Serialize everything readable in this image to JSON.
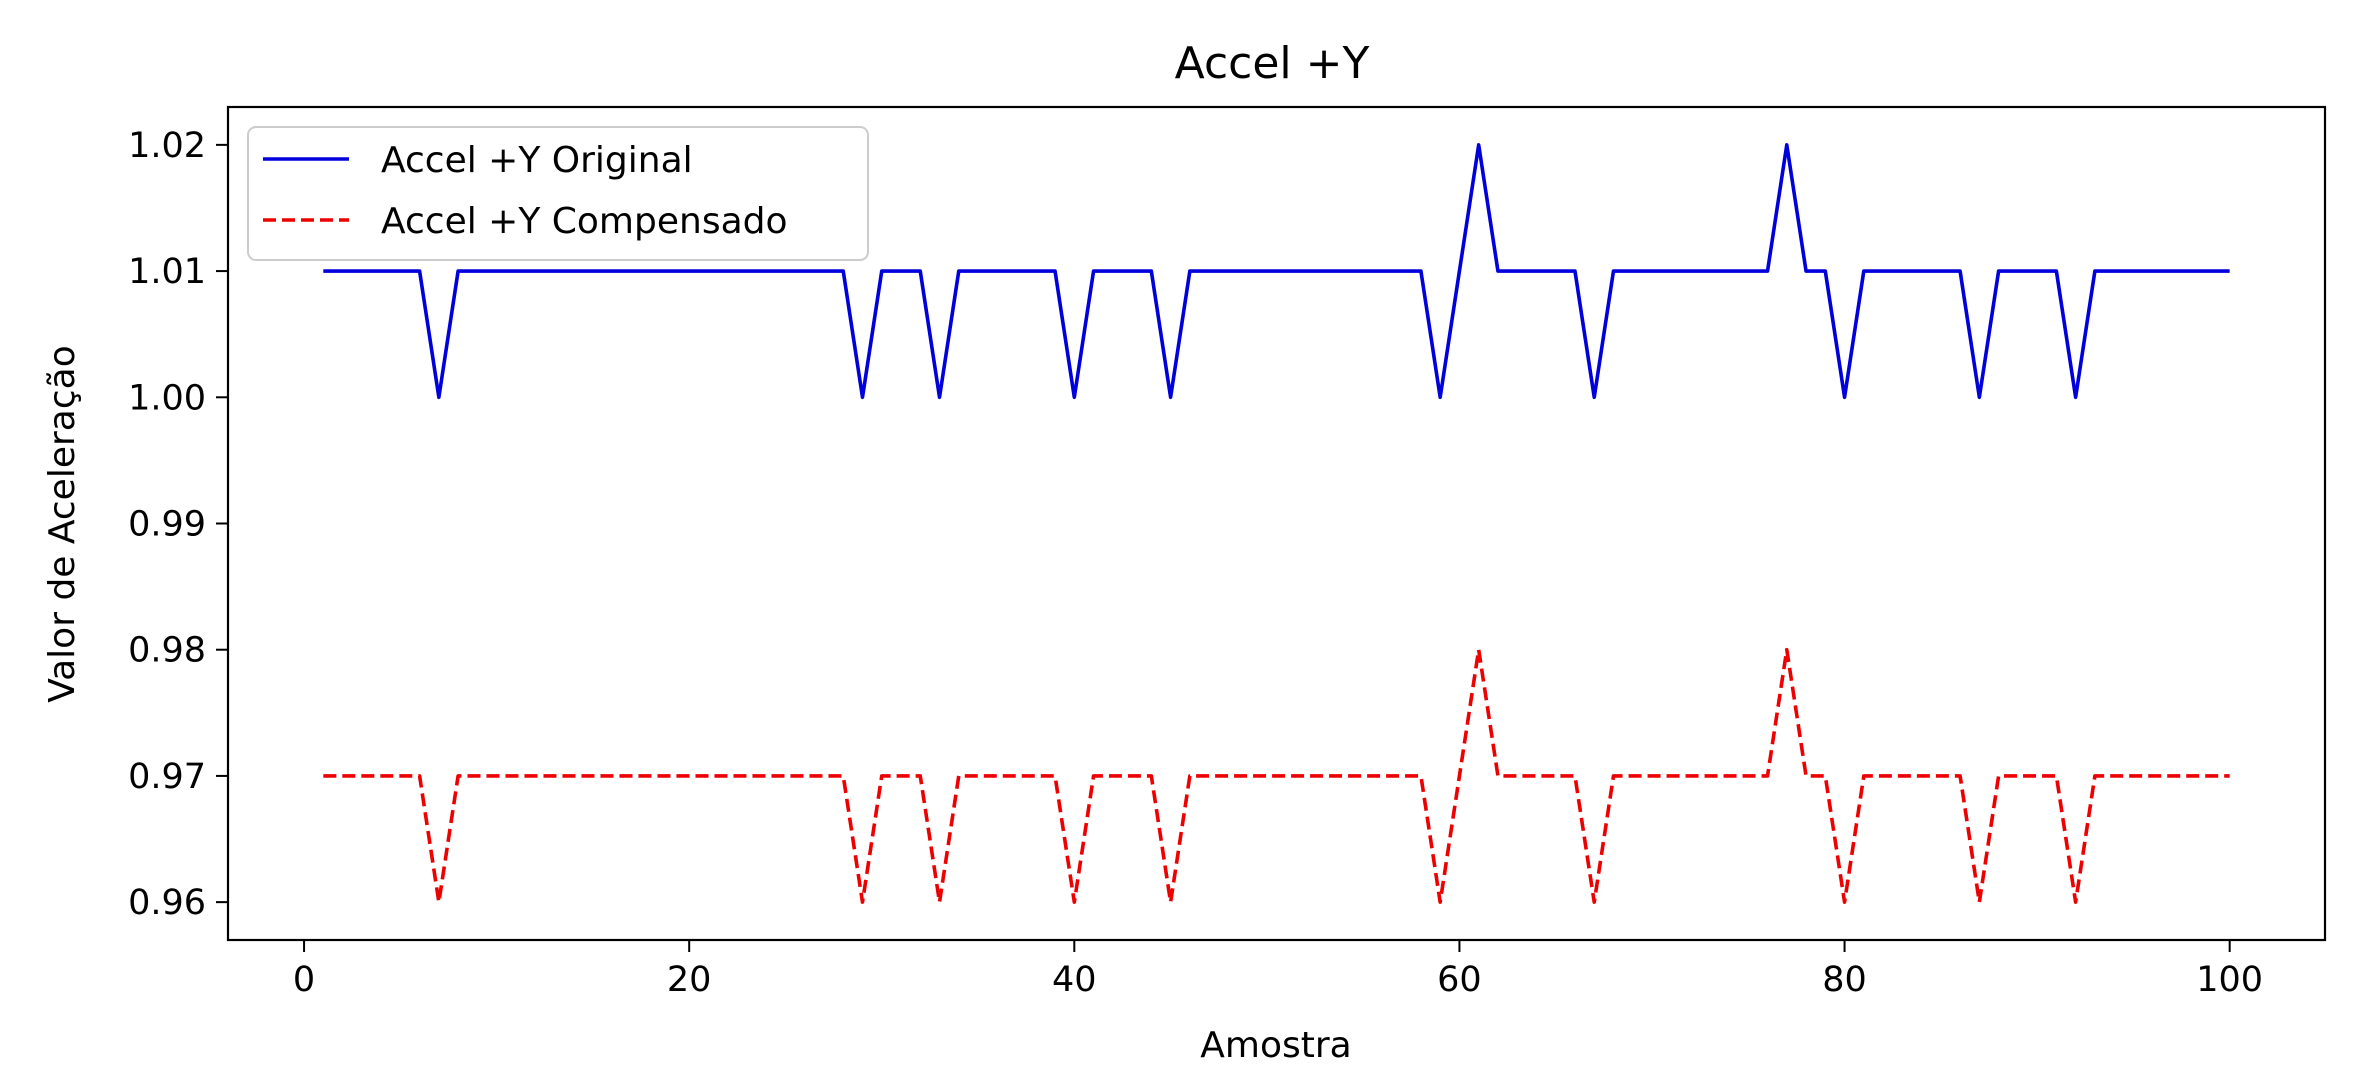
{
  "chart_data": {
    "type": "line",
    "title": "Accel +Y",
    "xlabel": "Amostra",
    "ylabel": "Valor de Aceleração",
    "xlim": [
      -3.95,
      104.95
    ],
    "ylim": [
      0.957,
      1.023
    ],
    "xticks": [
      0,
      20,
      40,
      60,
      80,
      100
    ],
    "xtick_labels": [
      "0",
      "20",
      "40",
      "60",
      "80",
      "100"
    ],
    "yticks": [
      0.96,
      0.97,
      0.98,
      0.99,
      1.0,
      1.01,
      1.02
    ],
    "ytick_labels": [
      "0.96",
      "0.97",
      "0.98",
      "0.99",
      "1.00",
      "1.01",
      "1.02"
    ],
    "grid": false,
    "legend_position": "upper left",
    "x": [
      1,
      2,
      3,
      4,
      5,
      6,
      7,
      8,
      9,
      10,
      11,
      12,
      13,
      14,
      15,
      16,
      17,
      18,
      19,
      20,
      21,
      22,
      23,
      24,
      25,
      26,
      27,
      28,
      29,
      30,
      31,
      32,
      33,
      34,
      35,
      36,
      37,
      38,
      39,
      40,
      41,
      42,
      43,
      44,
      45,
      46,
      47,
      48,
      49,
      50,
      51,
      52,
      53,
      54,
      55,
      56,
      57,
      58,
      59,
      60,
      61,
      62,
      63,
      64,
      65,
      66,
      67,
      68,
      69,
      70,
      71,
      72,
      73,
      74,
      75,
      76,
      77,
      78,
      79,
      80,
      81,
      82,
      83,
      84,
      85,
      86,
      87,
      88,
      89,
      90,
      91,
      92,
      93,
      94,
      95,
      96,
      97,
      98,
      99,
      100
    ],
    "series": [
      {
        "name": "Accel +Y Original",
        "color": "#0000dd",
        "style": "solid",
        "values": [
          1.01,
          1.01,
          1.01,
          1.01,
          1.01,
          1.01,
          1.0,
          1.01,
          1.01,
          1.01,
          1.01,
          1.01,
          1.01,
          1.01,
          1.01,
          1.01,
          1.01,
          1.01,
          1.01,
          1.01,
          1.01,
          1.01,
          1.01,
          1.01,
          1.01,
          1.01,
          1.01,
          1.01,
          1.0,
          1.01,
          1.01,
          1.01,
          1.0,
          1.01,
          1.01,
          1.01,
          1.01,
          1.01,
          1.01,
          1.0,
          1.01,
          1.01,
          1.01,
          1.01,
          1.0,
          1.01,
          1.01,
          1.01,
          1.01,
          1.01,
          1.01,
          1.01,
          1.01,
          1.01,
          1.01,
          1.01,
          1.01,
          1.01,
          1.0,
          1.01,
          1.02,
          1.01,
          1.01,
          1.01,
          1.01,
          1.01,
          1.0,
          1.01,
          1.01,
          1.01,
          1.01,
          1.01,
          1.01,
          1.01,
          1.01,
          1.01,
          1.02,
          1.01,
          1.01,
          1.0,
          1.01,
          1.01,
          1.01,
          1.01,
          1.01,
          1.01,
          1.0,
          1.01,
          1.01,
          1.01,
          1.01,
          1.0,
          1.01,
          1.01,
          1.01,
          1.01,
          1.01,
          1.01,
          1.01,
          1.01
        ]
      },
      {
        "name": "Accel +Y Compensado",
        "color": "#ee0000",
        "style": "dashed",
        "values": [
          0.97,
          0.97,
          0.97,
          0.97,
          0.97,
          0.97,
          0.96,
          0.97,
          0.97,
          0.97,
          0.97,
          0.97,
          0.97,
          0.97,
          0.97,
          0.97,
          0.97,
          0.97,
          0.97,
          0.97,
          0.97,
          0.97,
          0.97,
          0.97,
          0.97,
          0.97,
          0.97,
          0.97,
          0.96,
          0.97,
          0.97,
          0.97,
          0.96,
          0.97,
          0.97,
          0.97,
          0.97,
          0.97,
          0.97,
          0.96,
          0.97,
          0.97,
          0.97,
          0.97,
          0.96,
          0.97,
          0.97,
          0.97,
          0.97,
          0.97,
          0.97,
          0.97,
          0.97,
          0.97,
          0.97,
          0.97,
          0.97,
          0.97,
          0.96,
          0.97,
          0.98,
          0.97,
          0.97,
          0.97,
          0.97,
          0.97,
          0.96,
          0.97,
          0.97,
          0.97,
          0.97,
          0.97,
          0.97,
          0.97,
          0.97,
          0.97,
          0.98,
          0.97,
          0.97,
          0.96,
          0.97,
          0.97,
          0.97,
          0.97,
          0.97,
          0.97,
          0.96,
          0.97,
          0.97,
          0.97,
          0.97,
          0.96,
          0.97,
          0.97,
          0.97,
          0.97,
          0.97,
          0.97,
          0.97,
          0.97
        ]
      }
    ]
  }
}
